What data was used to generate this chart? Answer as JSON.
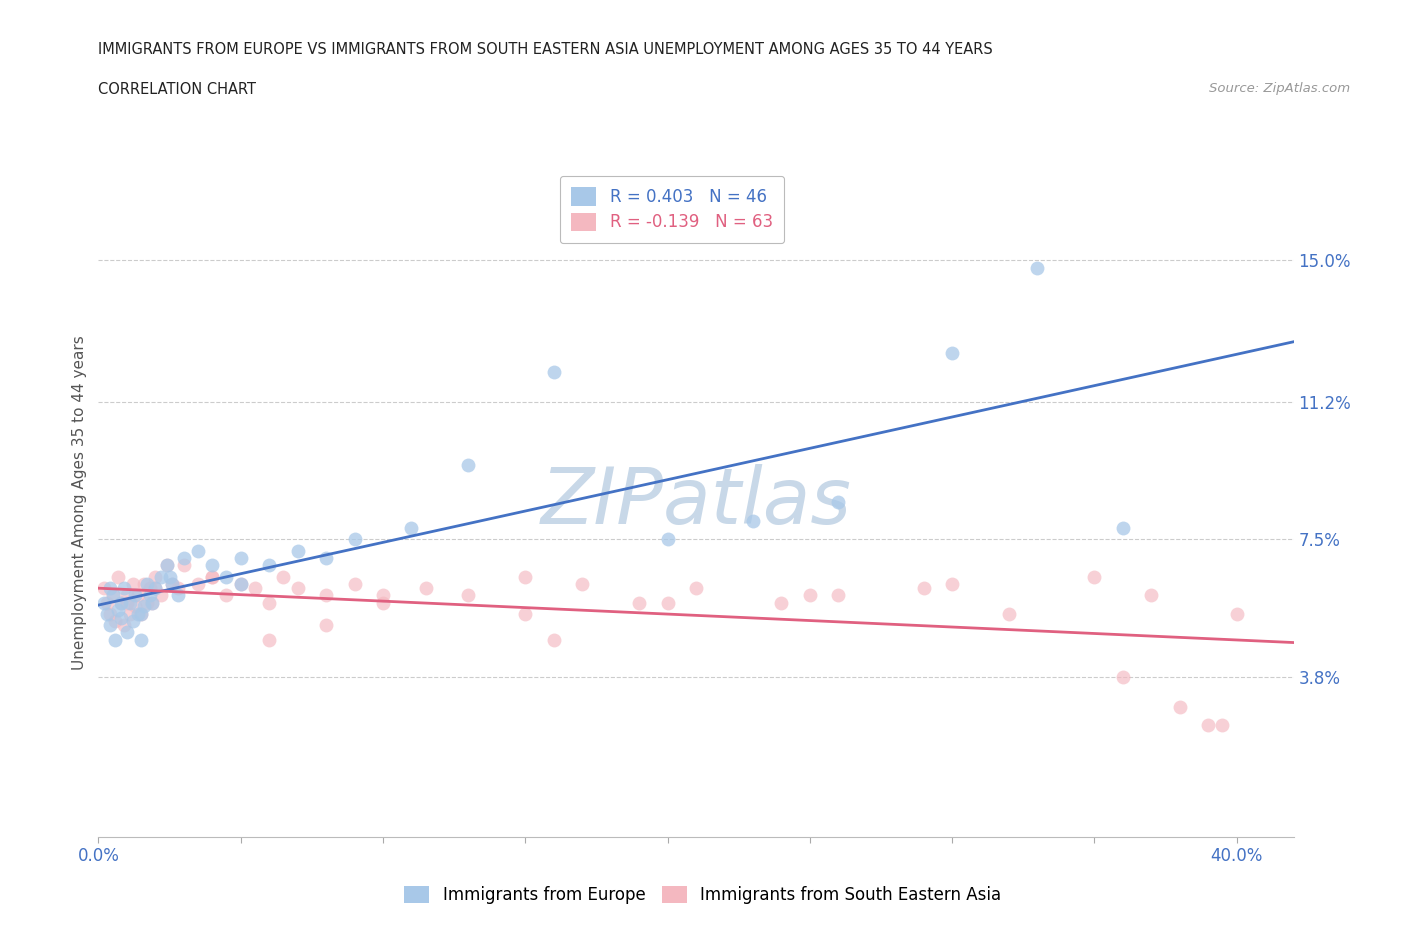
{
  "title_line1": "IMMIGRANTS FROM EUROPE VS IMMIGRANTS FROM SOUTH EASTERN ASIA UNEMPLOYMENT AMONG AGES 35 TO 44 YEARS",
  "title_line2": "CORRELATION CHART",
  "source_text": "Source: ZipAtlas.com",
  "ylabel": "Unemployment Among Ages 35 to 44 years",
  "xlim": [
    0.0,
    0.42
  ],
  "ylim": [
    -0.005,
    0.175
  ],
  "yticks": [
    0.038,
    0.075,
    0.112,
    0.15
  ],
  "ytick_labels": [
    "3.8%",
    "7.5%",
    "11.2%",
    "15.0%"
  ],
  "xtick_vals": [
    0.0,
    0.05,
    0.1,
    0.15,
    0.2,
    0.25,
    0.3,
    0.35,
    0.4
  ],
  "xtick_labels": [
    "0.0%",
    "",
    "",
    "",
    "",
    "",
    "",
    "",
    "40.0%"
  ],
  "legend_label1": "R = 0.403   N = 46",
  "legend_label2": "R = -0.139   N = 63",
  "color_europe": "#a8c8e8",
  "color_sea": "#f4b8c0",
  "color_europe_line": "#4472c4",
  "color_sea_line": "#e06080",
  "color_axis_labels": "#4472c4",
  "europe_x": [
    0.002,
    0.003,
    0.004,
    0.005,
    0.006,
    0.007,
    0.008,
    0.009,
    0.01,
    0.011,
    0.012,
    0.013,
    0.014,
    0.015,
    0.016,
    0.017,
    0.018,
    0.019,
    0.02,
    0.022,
    0.024,
    0.026,
    0.028,
    0.03,
    0.035,
    0.04,
    0.045,
    0.05,
    0.06,
    0.07,
    0.08,
    0.09,
    0.11,
    0.13,
    0.16,
    0.2,
    0.23,
    0.26,
    0.3,
    0.33,
    0.36,
    0.004,
    0.008,
    0.015,
    0.025,
    0.05
  ],
  "europe_y": [
    0.058,
    0.055,
    0.052,
    0.06,
    0.048,
    0.056,
    0.054,
    0.062,
    0.05,
    0.058,
    0.053,
    0.06,
    0.055,
    0.048,
    0.057,
    0.063,
    0.06,
    0.058,
    0.062,
    0.065,
    0.068,
    0.063,
    0.06,
    0.07,
    0.072,
    0.068,
    0.065,
    0.07,
    0.068,
    0.072,
    0.07,
    0.075,
    0.078,
    0.095,
    0.12,
    0.075,
    0.08,
    0.085,
    0.125,
    0.148,
    0.078,
    0.062,
    0.058,
    0.055,
    0.065,
    0.063
  ],
  "sea_x": [
    0.002,
    0.003,
    0.004,
    0.005,
    0.006,
    0.007,
    0.008,
    0.009,
    0.01,
    0.011,
    0.012,
    0.013,
    0.014,
    0.015,
    0.016,
    0.017,
    0.018,
    0.019,
    0.02,
    0.022,
    0.024,
    0.026,
    0.028,
    0.03,
    0.035,
    0.04,
    0.045,
    0.05,
    0.055,
    0.06,
    0.065,
    0.07,
    0.08,
    0.09,
    0.1,
    0.115,
    0.13,
    0.15,
    0.17,
    0.19,
    0.21,
    0.24,
    0.26,
    0.29,
    0.32,
    0.35,
    0.37,
    0.39,
    0.4,
    0.01,
    0.02,
    0.04,
    0.06,
    0.08,
    0.1,
    0.15,
    0.2,
    0.25,
    0.16,
    0.3,
    0.36,
    0.38,
    0.395
  ],
  "sea_y": [
    0.062,
    0.058,
    0.055,
    0.06,
    0.053,
    0.065,
    0.058,
    0.052,
    0.06,
    0.055,
    0.063,
    0.057,
    0.06,
    0.055,
    0.063,
    0.058,
    0.062,
    0.058,
    0.065,
    0.06,
    0.068,
    0.063,
    0.062,
    0.068,
    0.063,
    0.065,
    0.06,
    0.063,
    0.062,
    0.058,
    0.065,
    0.062,
    0.06,
    0.063,
    0.058,
    0.062,
    0.06,
    0.055,
    0.063,
    0.058,
    0.062,
    0.058,
    0.06,
    0.062,
    0.055,
    0.065,
    0.06,
    0.025,
    0.055,
    0.058,
    0.062,
    0.065,
    0.048,
    0.052,
    0.06,
    0.065,
    0.058,
    0.06,
    0.048,
    0.063,
    0.038,
    0.03,
    0.025
  ],
  "europe_marker_size": 100,
  "sea_marker_size": 100,
  "europe_alpha": 0.75,
  "sea_alpha": 0.65,
  "title_fontsize": 10.5,
  "subtitle_fontsize": 10.5,
  "source_fontsize": 9.5,
  "tick_fontsize": 12,
  "ylabel_fontsize": 11
}
